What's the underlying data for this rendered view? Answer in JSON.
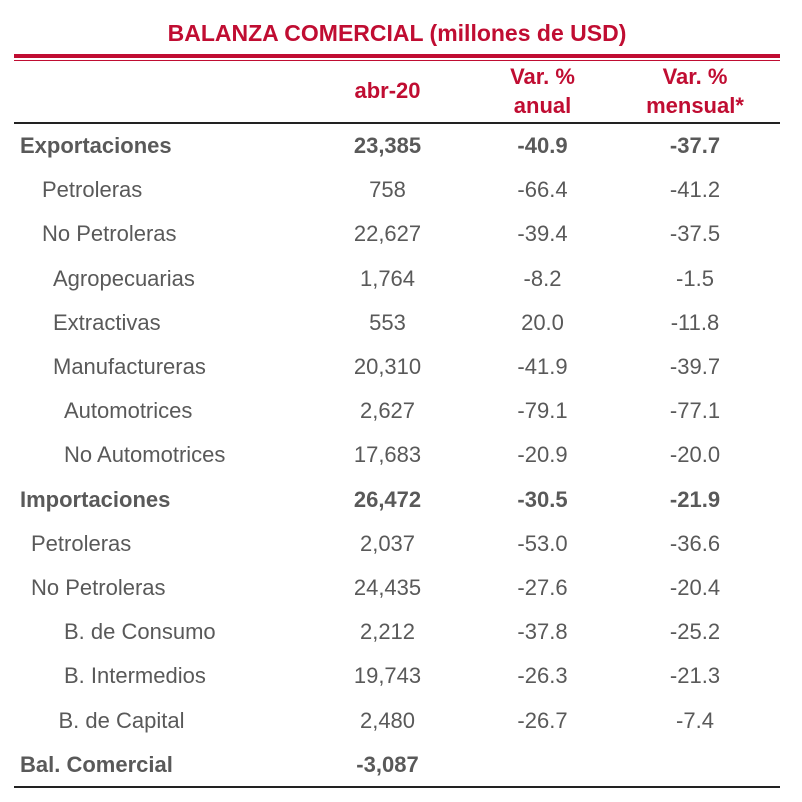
{
  "colors": {
    "title": "#c00d32",
    "header": "#c00d32",
    "text": "#595959",
    "rule": "#c00d32"
  },
  "chart_data": {
    "type": "table",
    "title": "BALANZA COMERCIAL (millones de USD)",
    "columns": [
      "abr-20",
      "Var. % anual",
      "Var. % mensual*"
    ],
    "column_headers": [
      {
        "lines": [
          "abr-20"
        ]
      },
      {
        "lines": [
          "Var. %",
          "anual"
        ]
      },
      {
        "lines": [
          "Var. %",
          "mensual*"
        ]
      }
    ],
    "rows": [
      {
        "label": "Exportaciones",
        "level": 0,
        "bold": true,
        "value": "23,385",
        "anual": "-40.9",
        "mensual": "-37.7"
      },
      {
        "label": "Petroleras",
        "level": 2,
        "bold": false,
        "value": "758",
        "anual": "-66.4",
        "mensual": "-41.2"
      },
      {
        "label": "No Petroleras",
        "level": 2,
        "bold": false,
        "value": "22,627",
        "anual": "-39.4",
        "mensual": "-37.5"
      },
      {
        "label": "Agropecuarias",
        "level": 3,
        "bold": false,
        "value": "1,764",
        "anual": "-8.2",
        "mensual": "-1.5"
      },
      {
        "label": "Extractivas",
        "level": 3,
        "bold": false,
        "value": "553",
        "anual": "20.0",
        "mensual": "-11.8"
      },
      {
        "label": "Manufactureras",
        "level": 3,
        "bold": false,
        "value": "20,310",
        "anual": "-41.9",
        "mensual": "-39.7"
      },
      {
        "label": "Automotrices",
        "level": 4,
        "bold": false,
        "value": "2,627",
        "anual": "-79.1",
        "mensual": "-77.1"
      },
      {
        "label": "No Automotrices",
        "level": 4,
        "bold": false,
        "value": "17,683",
        "anual": "-20.9",
        "mensual": "-20.0"
      },
      {
        "label": "Importaciones",
        "level": 0,
        "bold": true,
        "value": "26,472",
        "anual": "-30.5",
        "mensual": "-21.9"
      },
      {
        "label": "Petroleras",
        "level": 1,
        "bold": false,
        "value": "2,037",
        "anual": "-53.0",
        "mensual": "-36.6"
      },
      {
        "label": "No Petroleras",
        "level": 1,
        "bold": false,
        "value": "24,435",
        "anual": "-27.6",
        "mensual": "-20.4"
      },
      {
        "label": "B. de Consumo",
        "level": 4,
        "bold": false,
        "value": "2,212",
        "anual": "-37.8",
        "mensual": "-25.2"
      },
      {
        "label": "B. Intermedios",
        "level": 4,
        "bold": false,
        "value": "19,743",
        "anual": "-26.3",
        "mensual": "-21.3"
      },
      {
        "label": "B. de Capital",
        "level": 3.5,
        "bold": false,
        "value": "2,480",
        "anual": "-26.7",
        "mensual": "-7.4"
      },
      {
        "label": "Bal. Comercial",
        "level": 0,
        "bold": true,
        "value": "-3,087",
        "anual": "",
        "mensual": ""
      }
    ]
  }
}
